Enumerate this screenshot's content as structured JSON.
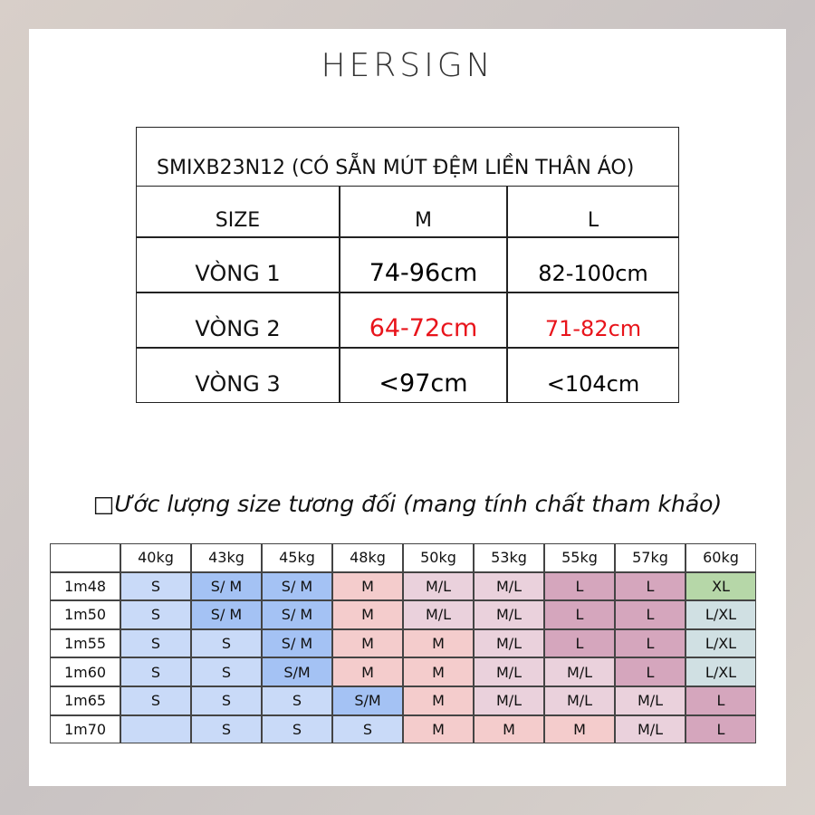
{
  "brand": "HERSIGN",
  "spec_table": {
    "title": "SMIXB23N12 (CÓ SẴN MÚT ĐỆM LIỀN THÂN ÁO)",
    "header": [
      "SIZE",
      "M",
      "L"
    ],
    "rows": [
      {
        "cells": [
          "VÒNG 1",
          "74-96cm",
          "82-100cm"
        ],
        "color": "#000000"
      },
      {
        "cells": [
          "VÒNG 2",
          "64-72cm",
          "71-82cm"
        ],
        "color": "#e8141b"
      },
      {
        "cells": [
          "VÒNG 3",
          "<97cm",
          "<104cm"
        ],
        "color": "#000000"
      }
    ]
  },
  "estimate_heading": "□Ước lượng size tương đối (mang tính chất tham khảo)",
  "size_table": {
    "header": [
      "40kg",
      "43kg",
      "45kg",
      "48kg",
      "50kg",
      "53kg",
      "55kg",
      "57kg",
      "60kg"
    ],
    "rows": [
      {
        "label": "1m48",
        "cells": [
          "S",
          "S/ M",
          "S/ M",
          "M",
          "M/L",
          "M/L",
          "L",
          "L",
          "XL"
        ],
        "colors": [
          "#c9daf8",
          "#a4c2f4",
          "#a4c2f4",
          "#f4cccc",
          "#ead1dc",
          "#ead1dc",
          "#d5a6bd",
          "#d5a6bd",
          "#b6d7a8"
        ]
      },
      {
        "label": "1m50",
        "cells": [
          "S",
          "S/ M",
          "S/ M",
          "M",
          "M/L",
          "M/L",
          "L",
          "L",
          "L/XL"
        ],
        "colors": [
          "#c9daf8",
          "#a4c2f4",
          "#a4c2f4",
          "#f4cccc",
          "#ead1dc",
          "#ead1dc",
          "#d5a6bd",
          "#d5a6bd",
          "#d0e0e3"
        ]
      },
      {
        "label": "1m55",
        "cells": [
          "S",
          "S",
          "S/ M",
          "M",
          "M",
          "M/L",
          "L",
          "L",
          "L/XL"
        ],
        "colors": [
          "#c9daf8",
          "#c9daf8",
          "#a4c2f4",
          "#f4cccc",
          "#f4cccc",
          "#ead1dc",
          "#d5a6bd",
          "#d5a6bd",
          "#d0e0e3"
        ]
      },
      {
        "label": "1m60",
        "cells": [
          "S",
          "S",
          "S/M",
          "M",
          "M",
          "M/L",
          "M/L",
          "L",
          "L/XL"
        ],
        "colors": [
          "#c9daf8",
          "#c9daf8",
          "#a4c2f4",
          "#f4cccc",
          "#f4cccc",
          "#ead1dc",
          "#ead1dc",
          "#d5a6bd",
          "#d0e0e3"
        ]
      },
      {
        "label": "1m65",
        "cells": [
          "S",
          "S",
          "S",
          "S/M",
          "M",
          "M/L",
          "M/L",
          "M/L",
          "L"
        ],
        "colors": [
          "#c9daf8",
          "#c9daf8",
          "#c9daf8",
          "#a4c2f4",
          "#f4cccc",
          "#ead1dc",
          "#ead1dc",
          "#ead1dc",
          "#d5a6bd"
        ]
      },
      {
        "label": "1m70",
        "cells": [
          null,
          "S",
          "S",
          "S",
          "M",
          "M",
          "M",
          "M/L",
          "L"
        ],
        "colors": [
          "#c9daf8",
          "#c9daf8",
          "#c9daf8",
          "#c9daf8",
          "#f4cccc",
          "#f4cccc",
          "#f4cccc",
          "#ead1dc",
          "#d5a6bd"
        ]
      }
    ]
  }
}
